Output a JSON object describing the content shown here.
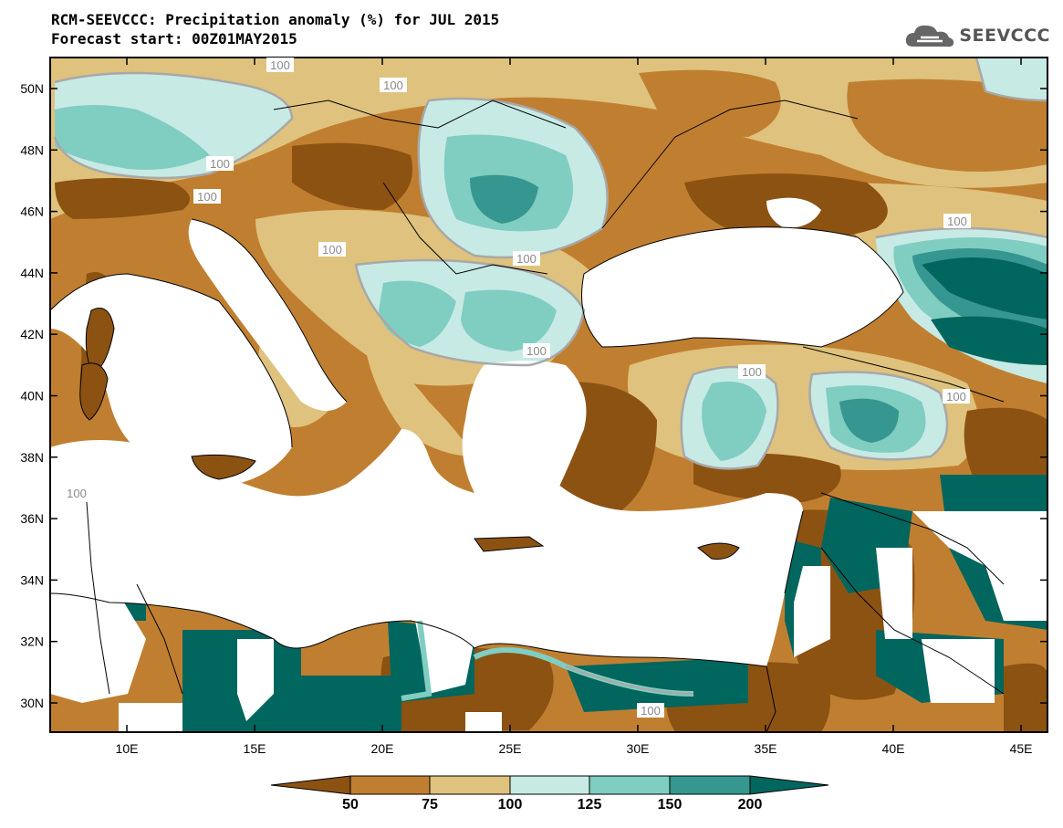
{
  "title": "RCM-SEEVCCC: Precipitation anomaly (%) for JUL 2015",
  "subtitle": "Forecast start: 00Z01MAY2015",
  "logo_text": "SEEVCCC",
  "lat_ticks": [
    "50N",
    "48N",
    "46N",
    "44N",
    "42N",
    "40N",
    "38N",
    "36N",
    "34N",
    "32N",
    "30N"
  ],
  "lon_ticks": [
    "10E",
    "15E",
    "20E",
    "25E",
    "30E",
    "35E",
    "40E",
    "45E"
  ],
  "contour_labels": [
    "100",
    "100",
    "100",
    "100",
    "100",
    "100",
    "100",
    "100",
    "100",
    "100",
    "100",
    "100"
  ],
  "colorbar": {
    "labels": [
      "50",
      "75",
      "100",
      "125",
      "150",
      "200"
    ],
    "colors": [
      "#8c5212",
      "#c07f30",
      "#dfc27d",
      "#c7eae5",
      "#80cdc1",
      "#35978f",
      "#01665e"
    ]
  },
  "colors": {
    "very_dry": "#8c5212",
    "dry": "#c07f30",
    "slightly_dry": "#dfc27d",
    "slightly_wet": "#c7eae5",
    "wet": "#80cdc1",
    "very_wet": "#35978f",
    "extreme_wet": "#01665e",
    "contour": "#a8a8a8"
  }
}
